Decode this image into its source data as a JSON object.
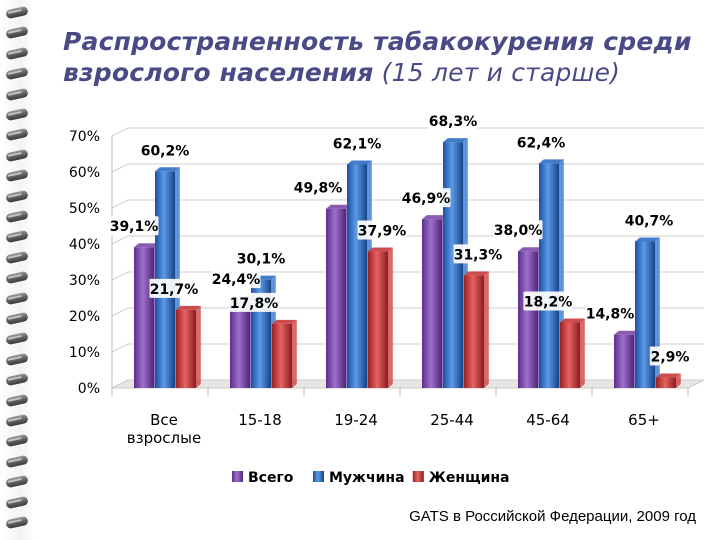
{
  "title": {
    "bold": "Распространенность табакокурения среди взрослого населения",
    "normal": "(15 лет и старше)"
  },
  "source": "GATS в Российской Федерации, 2009 год",
  "chart_data": {
    "type": "bar",
    "categories": [
      "Все взрослые",
      "15-18",
      "19-24",
      "25-44",
      "45-64",
      "65+"
    ],
    "series": [
      {
        "name": "Всего",
        "values": [
          39.1,
          24.4,
          49.8,
          46.9,
          38.0,
          14.8
        ],
        "labels": [
          "39,1%",
          "24,4%",
          "49,8%",
          "46,9%",
          "38,0%",
          "14,8%"
        ],
        "color": "#7b4ba6"
      },
      {
        "name": "Мужчина",
        "values": [
          60.2,
          30.1,
          62.1,
          68.3,
          62.4,
          40.7
        ],
        "labels": [
          "60,2%",
          "30,1%",
          "62,1%",
          "68,3%",
          "62,4%",
          "40,7%"
        ],
        "color": "#2e6fc7"
      },
      {
        "name": "Женщина",
        "values": [
          21.7,
          17.8,
          37.9,
          31.3,
          18.2,
          2.9
        ],
        "labels": [
          "21,7%",
          "17,8%",
          "37,9%",
          "31,3%",
          "18,2%",
          "2,9%"
        ],
        "color": "#c83a3a"
      }
    ],
    "yticks": [
      "0%",
      "10%",
      "20%",
      "30%",
      "40%",
      "50%",
      "60%",
      "70%"
    ],
    "ylim": [
      0,
      70
    ],
    "grid": true,
    "legend": "bottom"
  }
}
